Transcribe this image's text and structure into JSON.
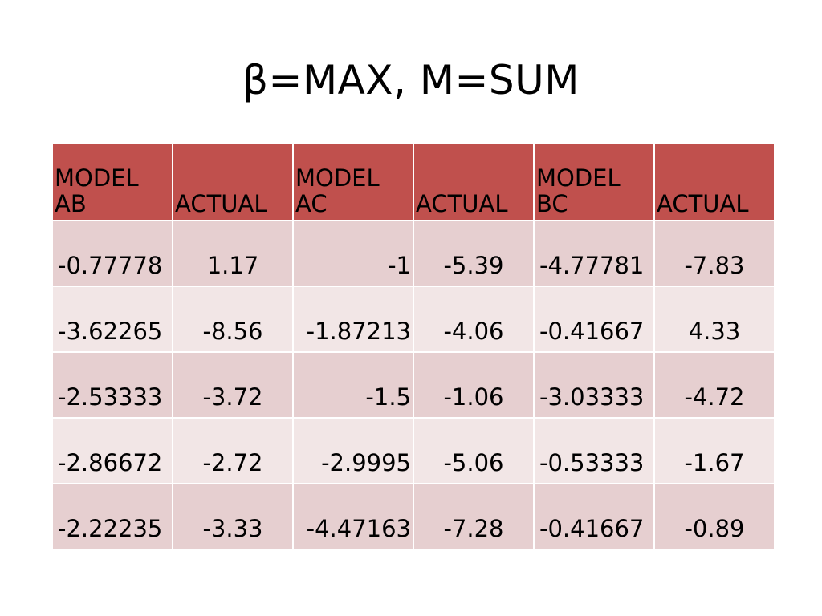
{
  "title": "β=MAX, M=SUM",
  "table": {
    "headers": [
      {
        "line1": "MODEL",
        "line2": "AB"
      },
      {
        "line1": "",
        "line2": "ACTUAL"
      },
      {
        "line1": "MODEL",
        "line2": "AC"
      },
      {
        "line1": "",
        "line2": "ACTUAL"
      },
      {
        "line1": "MODEL",
        "line2": "BC"
      },
      {
        "line1": "",
        "line2": "ACTUAL"
      }
    ],
    "rows": [
      [
        "-0.77778",
        "1.17",
        "-1",
        "-5.39",
        "-4.77781",
        "-7.83"
      ],
      [
        "-3.62265",
        "-8.56",
        "-1.87213",
        "-4.06",
        "-0.41667",
        "4.33"
      ],
      [
        "-2.53333",
        "-3.72",
        "-1.5",
        "-1.06",
        "-3.03333",
        "-4.72"
      ],
      [
        "-2.86672",
        "-2.72",
        "-2.9995",
        "-5.06",
        "-0.53333",
        "-1.67"
      ],
      [
        "-2.22235",
        "-3.33",
        "-4.47163",
        "-7.28",
        "-0.41667",
        "-0.89"
      ]
    ]
  },
  "colors": {
    "header_bg": "#c0504d",
    "row_odd_bg": "#e6cfd0",
    "row_even_bg": "#f2e6e6"
  }
}
